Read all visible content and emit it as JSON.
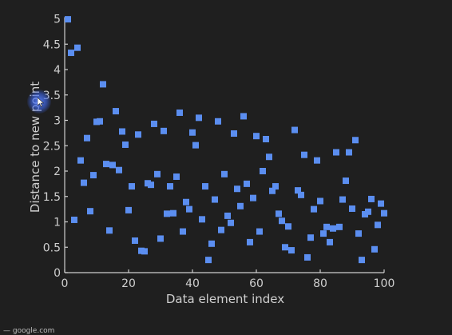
{
  "chart_data": {
    "type": "scatter",
    "title": "",
    "xlabel": "Data element index",
    "ylabel": "Distance to new point",
    "xlim": [
      0,
      100
    ],
    "ylim": [
      0,
      5
    ],
    "xticks": [
      "0",
      "20",
      "40",
      "60",
      "80",
      "100"
    ],
    "yticks": [
      "0",
      "0.5",
      "1",
      "1.5",
      "2",
      "2.5",
      "3",
      "3.5",
      "4",
      "4.5",
      "5"
    ],
    "grid": false,
    "marker_color": "#5b8ef0",
    "x": [
      1,
      2,
      3,
      4,
      5,
      6,
      7,
      8,
      9,
      10,
      11,
      12,
      13,
      14,
      15,
      16,
      17,
      18,
      19,
      20,
      21,
      22,
      23,
      24,
      25,
      26,
      27,
      28,
      29,
      30,
      31,
      32,
      33,
      34,
      35,
      36,
      37,
      38,
      39,
      40,
      41,
      42,
      43,
      44,
      45,
      46,
      47,
      48,
      49,
      50,
      51,
      52,
      53,
      54,
      55,
      56,
      57,
      58,
      59,
      60,
      61,
      62,
      63,
      64,
      65,
      66,
      67,
      68,
      69,
      70,
      71,
      72,
      73,
      74,
      75,
      76,
      77,
      78,
      79,
      80,
      81,
      82,
      83,
      84,
      85,
      86,
      87,
      88,
      89,
      90,
      91,
      92,
      93,
      94,
      95,
      96,
      97,
      98,
      99,
      100
    ],
    "y": [
      4.99,
      4.33,
      1.04,
      4.43,
      2.21,
      1.77,
      2.65,
      1.21,
      1.92,
      2.97,
      2.98,
      3.71,
      2.14,
      0.83,
      2.12,
      3.18,
      2.02,
      2.78,
      2.52,
      1.23,
      1.7,
      0.63,
      2.72,
      0.43,
      0.42,
      1.76,
      1.73,
      2.93,
      1.94,
      0.67,
      2.79,
      1.16,
      1.7,
      1.17,
      1.89,
      3.15,
      0.81,
      1.39,
      1.25,
      2.76,
      2.51,
      3.05,
      1.05,
      1.7,
      0.25,
      0.57,
      1.44,
      2.98,
      0.84,
      1.94,
      1.12,
      0.98,
      2.74,
      1.65,
      1.31,
      3.08,
      1.75,
      0.6,
      1.47,
      2.69,
      0.81,
      2.0,
      2.63,
      2.28,
      1.61,
      1.7,
      1.16,
      1.02,
      0.5,
      0.91,
      0.44,
      2.81,
      1.62,
      1.53,
      2.32,
      0.3,
      0.69,
      1.25,
      2.21,
      1.41,
      0.77,
      0.9,
      0.6,
      0.87,
      2.37,
      0.9,
      1.44,
      1.81,
      2.37,
      1.26,
      2.61,
      0.77,
      0.25,
      1.15,
      1.2,
      1.45,
      0.46,
      0.94,
      1.36,
      1.17
    ]
  },
  "cursor": {
    "icon": "mouse-cursor-icon",
    "highlight_color": "#4a6fe8"
  },
  "footer": {
    "text": "— google.com"
  }
}
